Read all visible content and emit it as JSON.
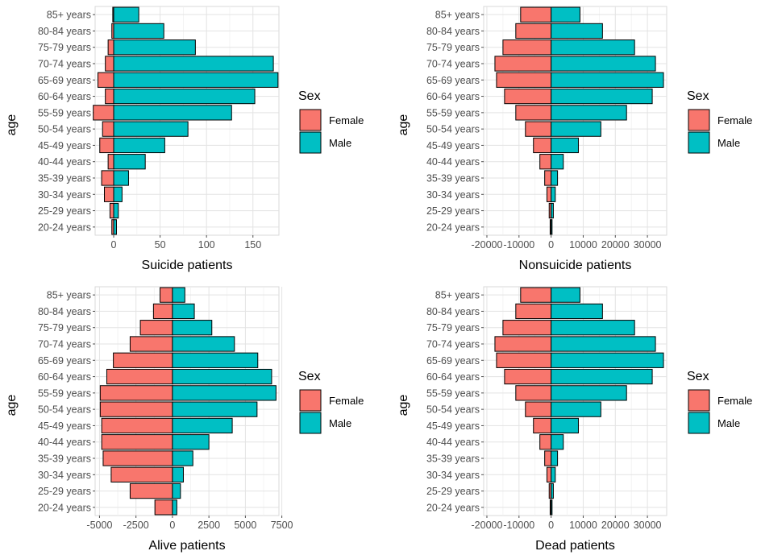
{
  "chart_data": [
    {
      "type": "bar",
      "orientation": "horizontal",
      "ylabel": "age",
      "xlabel": "Suicide patients",
      "categories": [
        "20-24 years",
        "25-29 years",
        "30-34 years",
        "35-39 years",
        "40-44 years",
        "45-49 years",
        "50-54 years",
        "55-59 years",
        "60-64 years",
        "65-69 years",
        "70-74 years",
        "75-79 years",
        "80-84 years",
        "85+ years"
      ],
      "series": [
        {
          "name": "Female",
          "color": "#F8766D",
          "values": [
            -2,
            -4,
            -10,
            -13,
            -6,
            -15,
            -12,
            -22,
            -9,
            -17,
            -9,
            -6,
            -2,
            -1
          ]
        },
        {
          "name": "Male",
          "color": "#00BFC4",
          "values": [
            3,
            5,
            9,
            16,
            34,
            55,
            80,
            127,
            152,
            177,
            172,
            88,
            54,
            27
          ]
        }
      ],
      "xlim": [
        -20,
        178
      ],
      "xticks": [
        0,
        50,
        100,
        150
      ],
      "xtick_labels": [
        "0",
        "50",
        "100",
        "150"
      ],
      "legend": {
        "title": "Sex",
        "position": "right"
      },
      "grid": true
    },
    {
      "type": "bar",
      "orientation": "horizontal",
      "ylabel": "age",
      "xlabel": "Nonsuicide patients",
      "categories": [
        "20-24 years",
        "25-29 years",
        "30-34 years",
        "35-39 years",
        "40-44 years",
        "45-49 years",
        "50-54 years",
        "55-59 years",
        "60-64 years",
        "65-69 years",
        "70-74 years",
        "75-79 years",
        "80-84 years",
        "85+ years"
      ],
      "series": [
        {
          "name": "Female",
          "color": "#F8766D",
          "values": [
            -300,
            -600,
            -1300,
            -2000,
            -3500,
            -5500,
            -8000,
            -11000,
            -14500,
            -17000,
            -17500,
            -15000,
            -11000,
            -9500
          ]
        },
        {
          "name": "Male",
          "color": "#00BFC4",
          "values": [
            300,
            700,
            1300,
            2000,
            3800,
            8500,
            15500,
            23500,
            31500,
            35000,
            32500,
            26000,
            16000,
            9000
          ]
        }
      ],
      "xlim": [
        -21000,
        36000
      ],
      "xticks": [
        -20000,
        -10000,
        0,
        10000,
        20000,
        30000
      ],
      "xtick_labels": [
        "-20000",
        "-10000",
        "0",
        "10000",
        "20000",
        "30000"
      ],
      "legend": {
        "title": "Sex",
        "position": "right"
      },
      "grid": true
    },
    {
      "type": "bar",
      "orientation": "horizontal",
      "ylabel": "age",
      "xlabel": "Alive patients",
      "categories": [
        "20-24 years",
        "25-29 years",
        "30-34 years",
        "35-39 years",
        "40-44 years",
        "45-49 years",
        "50-54 years",
        "55-59 years",
        "60-64 years",
        "65-69 years",
        "70-74 years",
        "75-79 years",
        "80-84 years",
        "85+ years"
      ],
      "series": [
        {
          "name": "Female",
          "color": "#F8766D",
          "values": [
            -1200,
            -2900,
            -4200,
            -4750,
            -4850,
            -4850,
            -4950,
            -4950,
            -4500,
            -4050,
            -2900,
            -2200,
            -1300,
            -850
          ]
        },
        {
          "name": "Male",
          "color": "#00BFC4",
          "values": [
            300,
            550,
            750,
            1400,
            2500,
            4100,
            5800,
            7100,
            6800,
            5850,
            4250,
            2700,
            1500,
            850
          ]
        }
      ],
      "xlim": [
        -5300,
        7300
      ],
      "xticks": [
        -5000,
        -2500,
        0,
        2500,
        5000,
        7500
      ],
      "xtick_labels": [
        "-5000",
        "-2500",
        "0",
        "2500",
        "5000",
        "7500"
      ],
      "legend": {
        "title": "Sex",
        "position": "right"
      },
      "grid": true
    },
    {
      "type": "bar",
      "orientation": "horizontal",
      "ylabel": "age",
      "xlabel": "Dead patients",
      "categories": [
        "20-24 years",
        "25-29 years",
        "30-34 years",
        "35-39 years",
        "40-44 years",
        "45-49 years",
        "50-54 years",
        "55-59 years",
        "60-64 years",
        "65-69 years",
        "70-74 years",
        "75-79 years",
        "80-84 years",
        "85+ years"
      ],
      "series": [
        {
          "name": "Female",
          "color": "#F8766D",
          "values": [
            -300,
            -600,
            -1300,
            -2000,
            -3500,
            -5500,
            -8000,
            -11000,
            -14500,
            -17000,
            -17500,
            -15000,
            -11000,
            -9500
          ]
        },
        {
          "name": "Male",
          "color": "#00BFC4",
          "values": [
            300,
            700,
            1300,
            2000,
            3800,
            8500,
            15500,
            23500,
            31500,
            35000,
            32500,
            26000,
            16000,
            9000
          ]
        }
      ],
      "xlim": [
        -21000,
        36000
      ],
      "xticks": [
        -20000,
        -10000,
        0,
        10000,
        20000,
        30000
      ],
      "xtick_labels": [
        "-20000",
        "-10000",
        "0",
        "10000",
        "20000",
        "30000"
      ],
      "legend": {
        "title": "Sex",
        "position": "right"
      },
      "grid": true
    }
  ]
}
